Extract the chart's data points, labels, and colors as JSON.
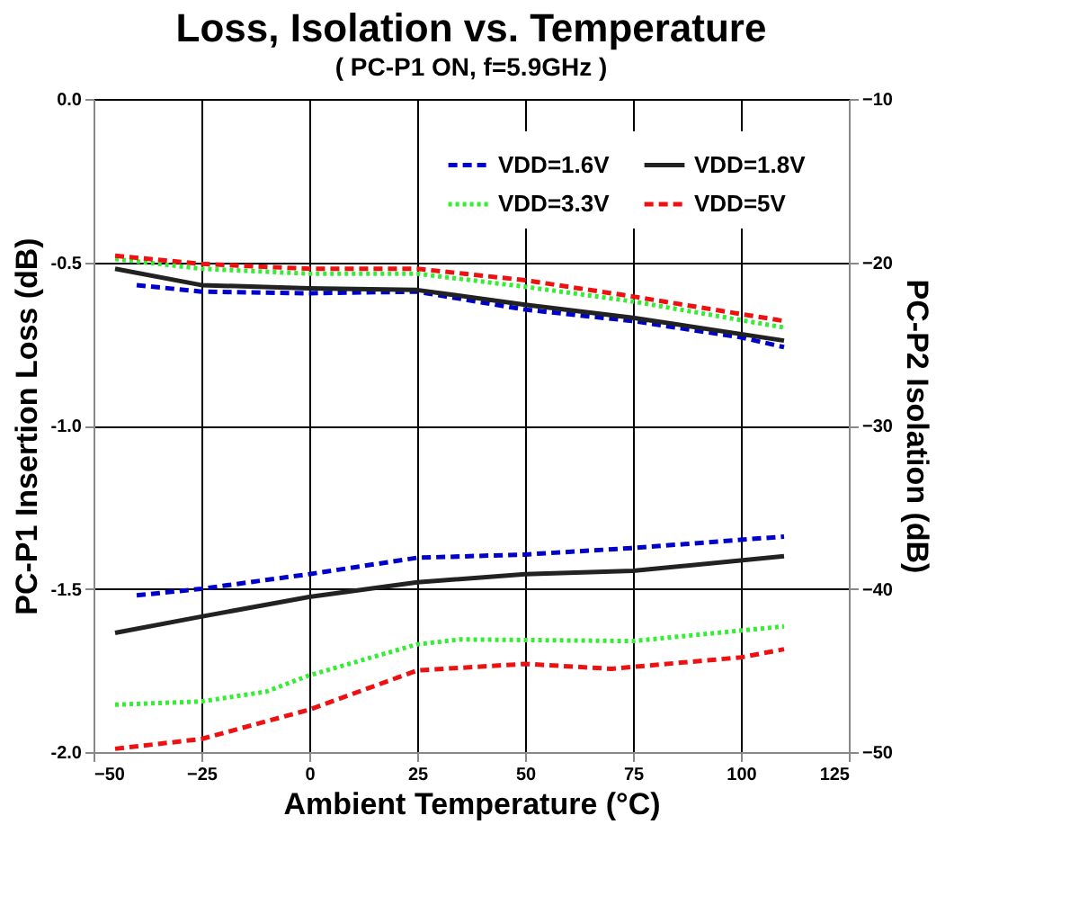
{
  "chart_data": {
    "type": "line",
    "title": "Loss, Isolation vs. Temperature",
    "subtitle": "( PC-P1 ON, f=5.9GHz )",
    "xlabel": "Ambient Temperature (°C)",
    "ylabel": "PC-P1 Insertion Loss (dB)",
    "y2label": "PC-P2 Isolation (dB)",
    "xlim": [
      -50,
      125
    ],
    "xticks": [
      -50,
      -25,
      0,
      25,
      50,
      75,
      100,
      125
    ],
    "ylim": [
      -2.0,
      0.0
    ],
    "yticks": [
      {
        "value": -2.0,
        "label": "-2.0"
      },
      {
        "value": -1.5,
        "label": "-1.5"
      },
      {
        "value": -1.0,
        "label": "-1.0"
      },
      {
        "value": -0.5,
        "label": "-0.5"
      },
      {
        "value": 0.0,
        "label": "0.0"
      }
    ],
    "y2lim": [
      -50,
      -10
    ],
    "y2ticks": [
      -50,
      -40,
      -30,
      -20,
      -10
    ],
    "grid": true,
    "legend": "top right",
    "marker": "none",
    "series": [
      {
        "name": "VDD=1.6V",
        "color": "#0000cc",
        "line_style": "dashed",
        "x": [
          -40,
          -25,
          0,
          25,
          50,
          75,
          100,
          110
        ],
        "values": [
          -0.57,
          -0.59,
          -0.595,
          -0.59,
          -0.645,
          -0.68,
          -0.73,
          -0.76
        ]
      },
      {
        "name": "VDD=3.3V",
        "color": "#33ee33",
        "line_style": "dotted",
        "x": [
          -45,
          -25,
          0,
          25,
          50,
          75,
          110
        ],
        "values": [
          -0.49,
          -0.52,
          -0.535,
          -0.535,
          -0.575,
          -0.62,
          -0.7
        ]
      },
      {
        "name": "VDD=1.8V",
        "color": "#222222",
        "line_style": "solid",
        "x": [
          -45,
          -25,
          0,
          25,
          50,
          75,
          110
        ],
        "values": [
          -0.52,
          -0.57,
          -0.58,
          -0.585,
          -0.63,
          -0.67,
          -0.74
        ]
      },
      {
        "name": "VDD=5V",
        "color": "#ee1111",
        "line_style": "dashed",
        "x": [
          -45,
          -25,
          0,
          25,
          50,
          75,
          110
        ],
        "values": [
          -0.48,
          -0.505,
          -0.52,
          -0.52,
          -0.555,
          -0.605,
          -0.68
        ]
      },
      {
        "color": "#0000cc",
        "line_style": "dashed",
        "axis": "y2",
        "x": [
          -40,
          -25,
          0,
          25,
          50,
          75,
          110
        ],
        "values": [
          -40.4,
          -40.0,
          -39.1,
          -38.1,
          -37.9,
          -37.5,
          -36.8
        ]
      },
      {
        "color": "#33ee33",
        "line_style": "dotted",
        "axis": "y2",
        "x": [
          -45,
          -25,
          -10,
          0,
          25,
          35,
          75,
          110
        ],
        "values": [
          -47.1,
          -46.9,
          -46.3,
          -45.3,
          -43.4,
          -43.1,
          -43.2,
          -42.3
        ]
      },
      {
        "color": "#222222",
        "line_style": "solid",
        "axis": "y2",
        "x": [
          -45,
          -25,
          0,
          25,
          50,
          75,
          110
        ],
        "values": [
          -42.7,
          -41.7,
          -40.5,
          -39.6,
          -39.1,
          -38.9,
          -38.0
        ]
      },
      {
        "color": "#ee1111",
        "line_style": "dashed",
        "axis": "y2",
        "x": [
          -45,
          -25,
          0,
          25,
          50,
          70,
          100,
          110
        ],
        "values": [
          -49.8,
          -49.2,
          -47.4,
          -45.0,
          -44.6,
          -44.9,
          -44.2,
          -43.7
        ]
      }
    ]
  }
}
